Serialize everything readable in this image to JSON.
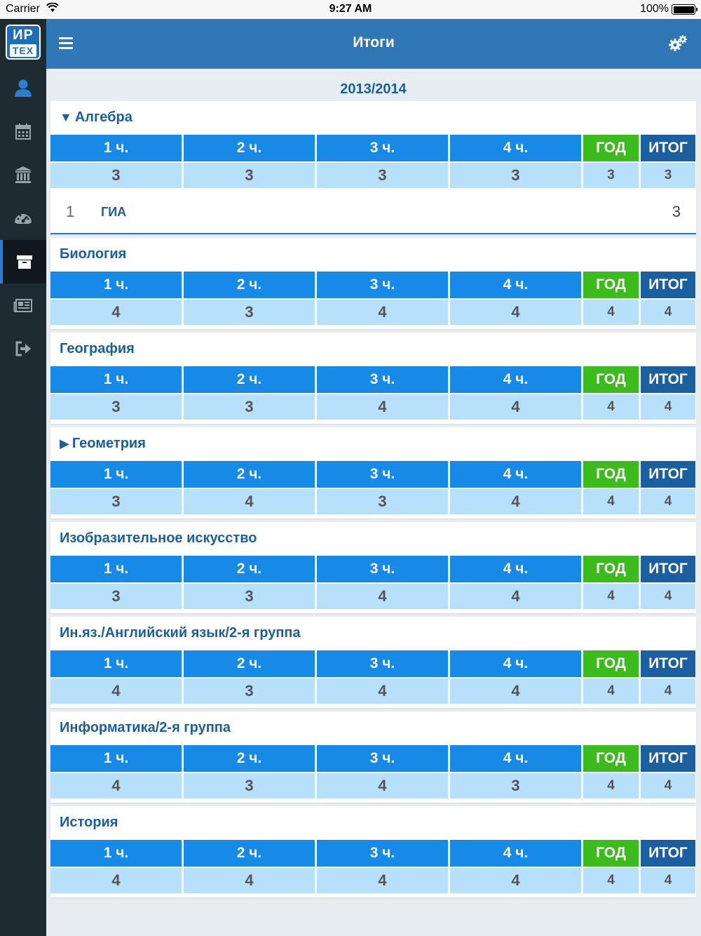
{
  "status_bar": {
    "carrier": "Carrier",
    "time": "9:27 AM",
    "battery": "100%"
  },
  "logo": {
    "top": "ИР",
    "bottom": "ТЕХ"
  },
  "sidebar": {
    "items": [
      {
        "icon": "user-icon",
        "active": false
      },
      {
        "icon": "calendar-icon",
        "active": false
      },
      {
        "icon": "bank-icon",
        "active": false
      },
      {
        "icon": "dashboard-icon",
        "active": false
      },
      {
        "icon": "archive-icon",
        "active": true
      },
      {
        "icon": "newspaper-icon",
        "active": false
      },
      {
        "icon": "logout-icon",
        "active": false
      }
    ]
  },
  "header": {
    "title": "Итоги"
  },
  "year": "2013/2014",
  "columns": [
    "1 ч.",
    "2 ч.",
    "3 ч.",
    "4 ч.",
    "ГОД",
    "ИТОГ"
  ],
  "colors": {
    "quarter": "#1789e6",
    "year": "#3cbb1c",
    "final": "#1a5fa0",
    "value_bg": "#b6e0fb",
    "header": "#3077b6"
  },
  "subjects": [
    {
      "name": "Алгебра",
      "arrow": "▼",
      "values": [
        "3",
        "3",
        "3",
        "3",
        "3",
        "3"
      ],
      "extra": {
        "num": "1",
        "name": "ГИА",
        "value": "3"
      }
    },
    {
      "name": "Биология",
      "arrow": "",
      "values": [
        "4",
        "3",
        "4",
        "4",
        "4",
        "4"
      ]
    },
    {
      "name": "География",
      "arrow": "",
      "values": [
        "3",
        "3",
        "4",
        "4",
        "4",
        "4"
      ]
    },
    {
      "name": "Геометрия",
      "arrow": "▶",
      "values": [
        "3",
        "4",
        "3",
        "4",
        "4",
        "4"
      ]
    },
    {
      "name": "Изобразительное искусство",
      "arrow": "",
      "values": [
        "3",
        "3",
        "4",
        "4",
        "4",
        "4"
      ]
    },
    {
      "name": "Ин.яз./Английский язык/2-я группа",
      "arrow": "",
      "values": [
        "4",
        "3",
        "4",
        "4",
        "4",
        "4"
      ]
    },
    {
      "name": "Информатика/2-я группа",
      "arrow": "",
      "values": [
        "4",
        "3",
        "4",
        "3",
        "4",
        "4"
      ]
    },
    {
      "name": "История",
      "arrow": "",
      "values": [
        "4",
        "4",
        "4",
        "4",
        "4",
        "4"
      ]
    }
  ]
}
